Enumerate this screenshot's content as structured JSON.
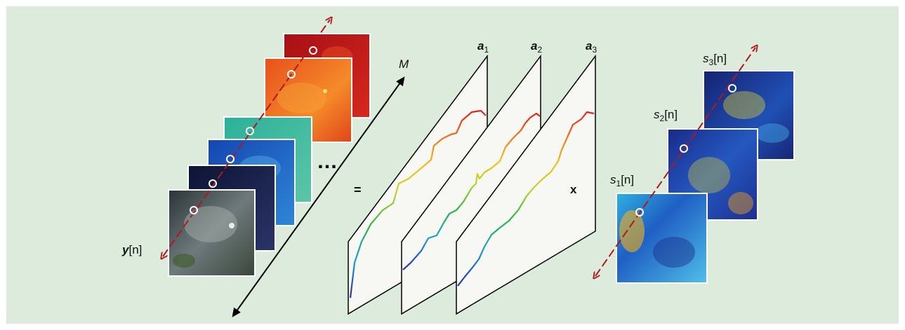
{
  "labels": {
    "y_n": {
      "base": "y",
      "arg": "[n]"
    },
    "M": "M",
    "equals": "=",
    "times": "x",
    "dots": "…",
    "a1": {
      "base": "a",
      "sub": "1"
    },
    "a2": {
      "base": "a",
      "sub": "2"
    },
    "a3": {
      "base": "a",
      "sub": "3"
    },
    "s1": {
      "base": "s",
      "sub": "1",
      "arg": "[n]"
    },
    "s2": {
      "base": "s",
      "sub": "2",
      "arg": "[n]"
    },
    "s3": {
      "base": "s",
      "sub": "3",
      "arg": "[n]"
    }
  },
  "colors": {
    "background": "#dcebdc",
    "arrow": "#b0191c",
    "axis": "#000000",
    "panel": "#f7f7f3",
    "band_colors": [
      "#3a3f45",
      "#1c2445",
      "#1f5fbf",
      "#2fa98c",
      "#f26522",
      "#c0141a"
    ],
    "spectrum": [
      "#2b3ab0",
      "#1a9fd0",
      "#2fb24a",
      "#c8d92b",
      "#f2c21f",
      "#f07a1e",
      "#e2231a"
    ],
    "abundance": [
      "#1d2a8c",
      "#1f63c8",
      "#35b5e0",
      "#f2e32b",
      "#f29a1d"
    ]
  }
}
